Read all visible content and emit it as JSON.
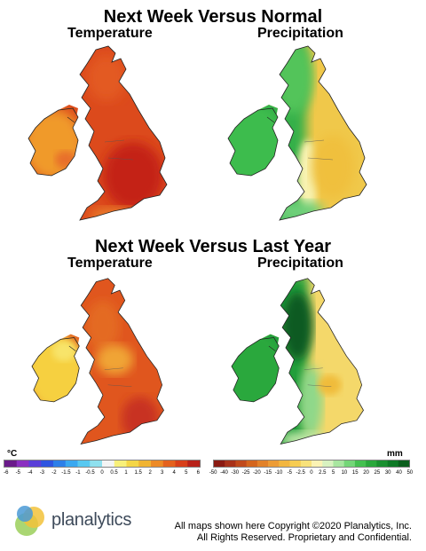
{
  "top": {
    "title": "Next Week Versus Normal",
    "left_label": "Temperature",
    "right_label": "Precipitation"
  },
  "bottom": {
    "title": "Next Week Versus Last Year",
    "left_label": "Temperature",
    "right_label": "Precipitation"
  },
  "temp_legend": {
    "unit": "°C",
    "ticks": [
      "-6",
      "-5",
      "-4",
      "-3",
      "-2",
      "-1.5",
      "-1",
      "-0.5",
      "0",
      "0.5",
      "1",
      "1.5",
      "2",
      "3",
      "4",
      "5",
      "6"
    ],
    "colors": [
      "#6a1a8a",
      "#8a2fc0",
      "#5a3fd8",
      "#2f55e0",
      "#2d7fe8",
      "#3aa8f0",
      "#58c8f0",
      "#8fe0ee",
      "#f4f4f4",
      "#f8f07a",
      "#f4d646",
      "#f0b432",
      "#ec8a26",
      "#e4621e",
      "#d8401a",
      "#b8221a"
    ]
  },
  "precip_legend": {
    "unit": "mm",
    "ticks": [
      "-50",
      "-40",
      "-30",
      "-25",
      "-20",
      "-15",
      "-10",
      "-5",
      "-2.5",
      "0",
      "2.5",
      "5",
      "10",
      "15",
      "20",
      "25",
      "30",
      "40",
      "50"
    ],
    "colors": [
      "#8a1a12",
      "#a8321a",
      "#c04a1c",
      "#d4661e",
      "#e2822a",
      "#ec9c36",
      "#f2b640",
      "#f6cc52",
      "#f8e27a",
      "#fbf3b4",
      "#d8f2c0",
      "#a8e6a0",
      "#74d678",
      "#44c050",
      "#2aa83c",
      "#1a9030",
      "#0e7a26",
      "#0a5e1c"
    ]
  },
  "footer": {
    "logo": "planalytics",
    "copyright_line1": "All maps shown here Copyright ©2020 Planalytics, Inc.",
    "copyright_line2": "All Rights Reserved. Proprietary and Confidential."
  },
  "colors": {
    "temp_warm": "#d8401a",
    "temp_hot": "#c42a18",
    "temp_mild": "#f0a030",
    "precip_wet": "#2aa83c",
    "precip_dry": "#f2c84a"
  }
}
